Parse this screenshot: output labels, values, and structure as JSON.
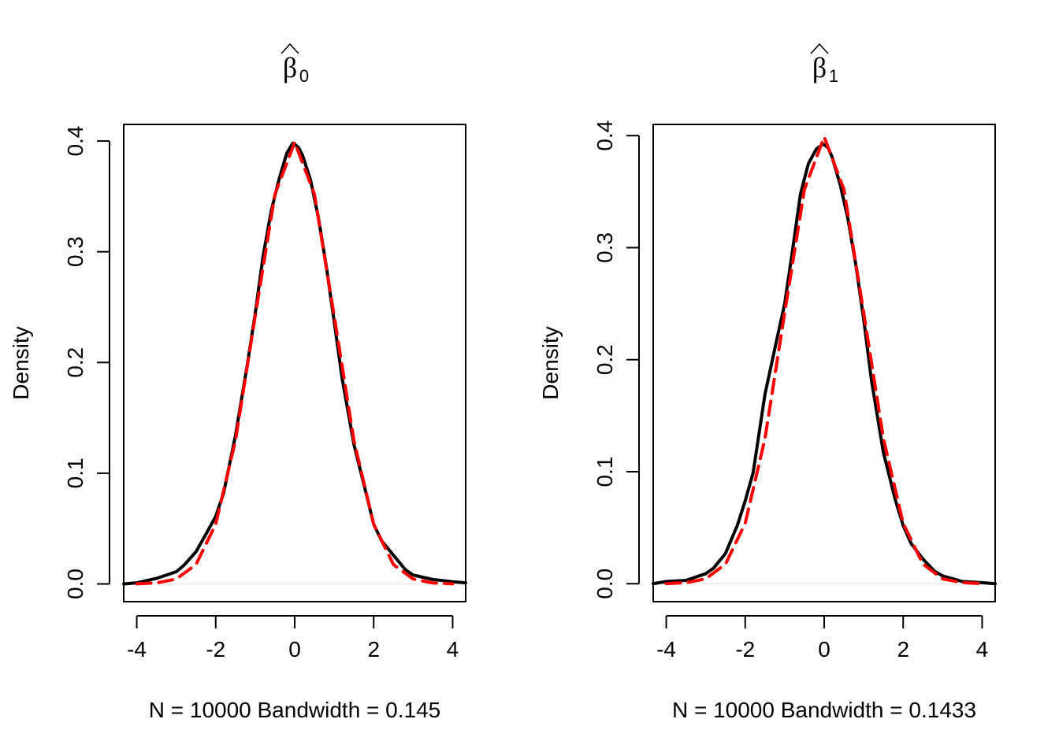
{
  "chart_data": [
    {
      "type": "line",
      "title_symbol": "β",
      "title_subscript": "0",
      "ylabel": "Density",
      "xlabel": "N = 10000   Bandwidth = 0.145",
      "xlim": [
        -4.33,
        4.33
      ],
      "ylim": [
        -0.016,
        0.415
      ],
      "xticks": [
        -4,
        -2,
        0,
        2,
        4
      ],
      "xtick_labels": [
        "-4",
        "-2",
        "0",
        "2",
        "4"
      ],
      "yticks": [
        0.0,
        0.1,
        0.2,
        0.3,
        0.4
      ],
      "ytick_labels": [
        "0.0",
        "0.1",
        "0.2",
        "0.3",
        "0.4"
      ],
      "grid": false,
      "series": [
        {
          "color": "#000000",
          "dash": "solid",
          "x": [
            -4.33,
            -4.0,
            -3.5,
            -3.0,
            -2.8,
            -2.5,
            -2.2,
            -2.0,
            -1.8,
            -1.5,
            -1.2,
            -1.0,
            -0.8,
            -0.6,
            -0.4,
            -0.2,
            -0.05,
            0.0,
            0.1,
            0.2,
            0.4,
            0.6,
            0.8,
            1.0,
            1.2,
            1.5,
            1.8,
            2.0,
            2.2,
            2.5,
            2.8,
            3.0,
            3.5,
            4.0,
            4.33
          ],
          "y": [
            0.0,
            0.001,
            0.005,
            0.011,
            0.017,
            0.029,
            0.048,
            0.061,
            0.082,
            0.134,
            0.198,
            0.244,
            0.296,
            0.336,
            0.365,
            0.389,
            0.398,
            0.397,
            0.394,
            0.387,
            0.365,
            0.331,
            0.287,
            0.237,
            0.186,
            0.126,
            0.083,
            0.054,
            0.039,
            0.026,
            0.013,
            0.008,
            0.004,
            0.002,
            0.001
          ]
        },
        {
          "color": "#ff0000",
          "dash": "dashed",
          "x": [
            -4.0,
            -3.5,
            -3.0,
            -2.5,
            -2.0,
            -1.5,
            -1.0,
            -0.5,
            0.0,
            0.5,
            1.0,
            1.5,
            2.0,
            2.5,
            3.0,
            3.5,
            4.0
          ],
          "y": [
            0.0001,
            0.0009,
            0.0044,
            0.0175,
            0.054,
            0.1295,
            0.242,
            0.352,
            0.3989,
            0.352,
            0.242,
            0.1295,
            0.054,
            0.0175,
            0.0044,
            0.0009,
            0.0001
          ]
        }
      ]
    },
    {
      "type": "line",
      "title_symbol": "β",
      "title_subscript": "1",
      "ylabel": "Density",
      "xlabel": "N = 10000   Bandwidth = 0.1433",
      "xlim": [
        -4.33,
        4.33
      ],
      "ylim": [
        -0.016,
        0.41
      ],
      "xticks": [
        -4,
        -2,
        0,
        2,
        4
      ],
      "xtick_labels": [
        "-4",
        "-2",
        "0",
        "2",
        "4"
      ],
      "yticks": [
        0.0,
        0.1,
        0.2,
        0.3,
        0.4
      ],
      "ytick_labels": [
        "0.0",
        "0.1",
        "0.2",
        "0.3",
        "0.4"
      ],
      "grid": false,
      "series": [
        {
          "color": "#000000",
          "dash": "solid",
          "x": [
            -4.33,
            -4.0,
            -3.5,
            -3.0,
            -2.8,
            -2.5,
            -2.2,
            -2.0,
            -1.8,
            -1.5,
            -1.2,
            -1.0,
            -0.8,
            -0.6,
            -0.4,
            -0.2,
            -0.05,
            0.0,
            0.1,
            0.2,
            0.4,
            0.6,
            0.8,
            1.0,
            1.2,
            1.5,
            1.8,
            2.0,
            2.2,
            2.5,
            2.8,
            3.0,
            3.5,
            4.0,
            4.33
          ],
          "y": [
            0.0,
            0.002,
            0.003,
            0.009,
            0.014,
            0.027,
            0.052,
            0.074,
            0.099,
            0.169,
            0.218,
            0.25,
            0.298,
            0.348,
            0.375,
            0.388,
            0.392,
            0.392,
            0.389,
            0.381,
            0.357,
            0.326,
            0.285,
            0.236,
            0.181,
            0.117,
            0.075,
            0.052,
            0.036,
            0.022,
            0.011,
            0.007,
            0.002,
            0.001,
            0.0
          ]
        },
        {
          "color": "#ff0000",
          "dash": "dashed",
          "x": [
            -4.0,
            -3.5,
            -3.0,
            -2.5,
            -2.0,
            -1.5,
            -1.0,
            -0.5,
            0.0,
            0.5,
            1.0,
            1.5,
            2.0,
            2.5,
            3.0,
            3.5,
            4.0
          ],
          "y": [
            0.0001,
            0.0009,
            0.0044,
            0.0175,
            0.054,
            0.1295,
            0.242,
            0.352,
            0.3989,
            0.352,
            0.242,
            0.1295,
            0.054,
            0.0175,
            0.0044,
            0.0009,
            0.0001
          ]
        }
      ]
    }
  ]
}
